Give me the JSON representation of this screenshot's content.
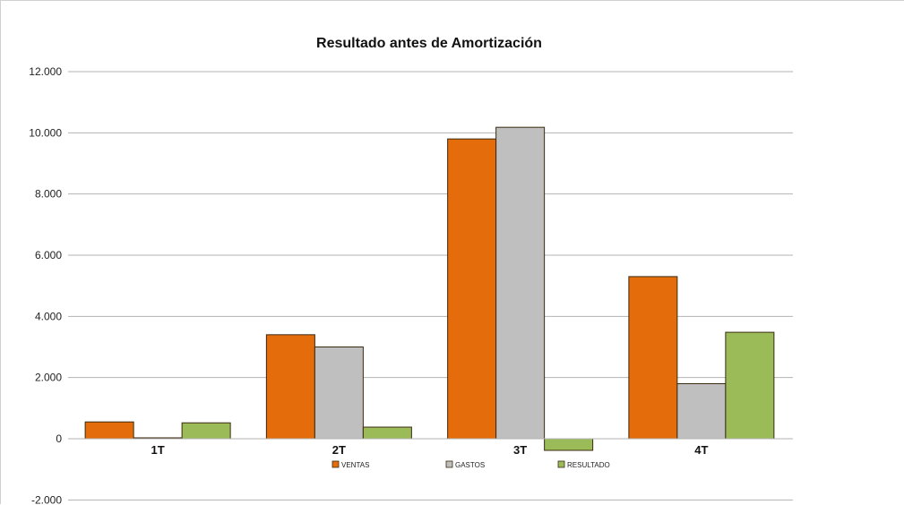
{
  "chart_data": {
    "type": "bar",
    "title": "Resultado antes de Amortización",
    "xlabel": "",
    "ylabel": "",
    "categories": [
      "1T",
      "2T",
      "3T",
      "4T"
    ],
    "series": [
      {
        "name": "VENTAS",
        "color": "#e46c0a",
        "values": [
          550,
          3400,
          9800,
          5300
        ]
      },
      {
        "name": "GASTOS",
        "color": "#bfbfbf",
        "values": [
          30,
          3000,
          10180,
          1800
        ]
      },
      {
        "name": "RESULTADO",
        "color": "#9bbb59",
        "values": [
          520,
          380,
          -380,
          3480
        ]
      }
    ],
    "ylim": [
      -2000,
      12000
    ],
    "yticks": [
      -2000,
      0,
      2000,
      4000,
      6000,
      8000,
      10000,
      12000
    ],
    "ytick_labels": [
      "-2.000",
      "0",
      "2.000",
      "4.000",
      "6.000",
      "8.000",
      "10.000",
      "12.000"
    ],
    "grid": true,
    "legend_position": "bottom"
  }
}
